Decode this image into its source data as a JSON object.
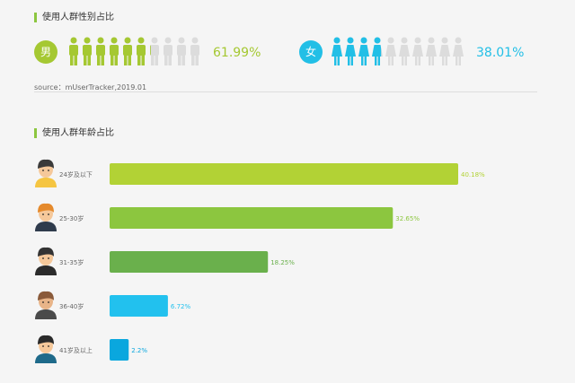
{
  "gender_section": {
    "title": "使用人群性别占比",
    "male": {
      "label": "男",
      "percent_text": "61.99%",
      "share": 0.6199,
      "color": "#a5c832"
    },
    "female": {
      "label": "女",
      "percent_text": "38.01%",
      "share": 0.3801,
      "color": "#22bfe6"
    },
    "inactive_color": "#dcdcdc",
    "source": "source：mUserTracker,2019.01"
  },
  "age_section": {
    "title": "使用人群年龄占比"
  },
  "chart_data": {
    "type": "bar",
    "orientation": "horizontal",
    "categories": [
      "24岁及以下",
      "25-30岁",
      "31-35岁",
      "36-40岁",
      "41岁及以上"
    ],
    "values": [
      40.18,
      32.65,
      18.25,
      6.72,
      2.2
    ],
    "value_labels": [
      "40.18%",
      "32.65%",
      "18.25%",
      "6.72%",
      "2.2%"
    ],
    "colors": [
      "#b2d235",
      "#8cc63f",
      "#6ab04c",
      "#22c1ee",
      "#0aa7de"
    ],
    "xlim": [
      0,
      40.18
    ],
    "grid": false,
    "legend": "none"
  }
}
